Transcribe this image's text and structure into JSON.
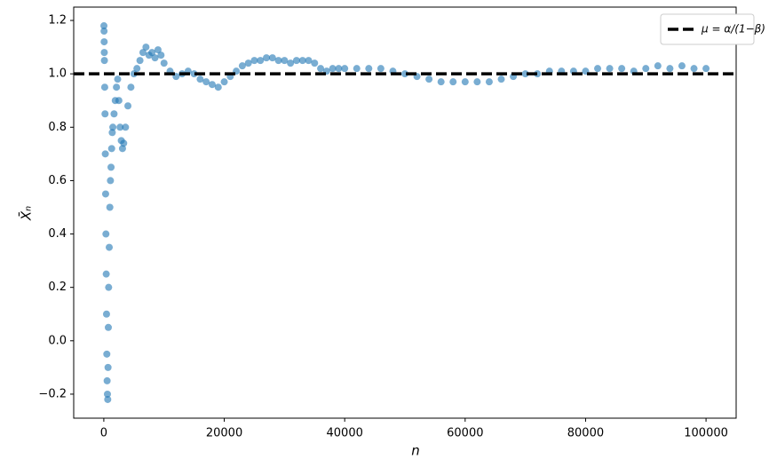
{
  "chart_data": {
    "type": "scatter",
    "xlabel": "n",
    "ylabel": "X̄ₙ",
    "x": [
      20,
      40,
      60,
      80,
      100,
      150,
      200,
      250,
      300,
      350,
      400,
      450,
      500,
      550,
      600,
      650,
      700,
      750,
      800,
      900,
      1000,
      1100,
      1200,
      1300,
      1400,
      1500,
      1700,
      1900,
      2100,
      2300,
      2500,
      2700,
      2900,
      3100,
      3300,
      3600,
      4000,
      4500,
      5000,
      5500,
      6000,
      6500,
      7000,
      7500,
      8000,
      8500,
      9000,
      9500,
      10000,
      11000,
      12000,
      13000,
      14000,
      15000,
      16000,
      17000,
      18000,
      19000,
      20000,
      21000,
      22000,
      23000,
      24000,
      25000,
      26000,
      27000,
      28000,
      29000,
      30000,
      31000,
      32000,
      33000,
      34000,
      35000,
      36000,
      37000,
      38000,
      39000,
      40000,
      42000,
      44000,
      46000,
      48000,
      50000,
      52000,
      54000,
      56000,
      58000,
      60000,
      62000,
      64000,
      66000,
      68000,
      70000,
      72000,
      74000,
      76000,
      78000,
      80000,
      82000,
      84000,
      86000,
      88000,
      90000,
      92000,
      94000,
      96000,
      98000,
      100000
    ],
    "series": [
      {
        "color": "#1f77b4",
        "values": [
          1.18,
          1.16,
          1.12,
          1.08,
          1.05,
          0.95,
          0.85,
          0.7,
          0.55,
          0.4,
          0.25,
          0.1,
          -0.05,
          -0.15,
          -0.2,
          -0.22,
          -0.1,
          0.05,
          0.2,
          0.35,
          0.5,
          0.6,
          0.65,
          0.72,
          0.78,
          0.8,
          0.85,
          0.9,
          0.95,
          0.98,
          0.9,
          0.8,
          0.75,
          0.72,
          0.74,
          0.8,
          0.88,
          0.95,
          1.0,
          1.02,
          1.05,
          1.08,
          1.1,
          1.07,
          1.08,
          1.06,
          1.09,
          1.07,
          1.04,
          1.01,
          0.99,
          1.0,
          1.01,
          1.0,
          0.98,
          0.97,
          0.96,
          0.95,
          0.97,
          0.99,
          1.01,
          1.03,
          1.04,
          1.05,
          1.05,
          1.06,
          1.06,
          1.05,
          1.05,
          1.04,
          1.05,
          1.05,
          1.05,
          1.04,
          1.02,
          1.01,
          1.02,
          1.02,
          1.02,
          1.02,
          1.02,
          1.02,
          1.01,
          1.0,
          0.99,
          0.98,
          0.97,
          0.97,
          0.97,
          0.97,
          0.97,
          0.98,
          0.99,
          1.0,
          1.0,
          1.01,
          1.01,
          1.01,
          1.01,
          1.02,
          1.02,
          1.02,
          1.01,
          1.02,
          1.03,
          1.02,
          1.03,
          1.02,
          1.02
        ]
      }
    ],
    "reference_line": {
      "y": 1,
      "label": "μ = α/(1−β)",
      "color": "#000000"
    },
    "legend": "upper right",
    "xlim": [
      -5000,
      105000
    ],
    "xticks": [
      0,
      20000,
      40000,
      60000,
      80000,
      100000
    ],
    "ylim": [
      -0.29,
      1.25
    ],
    "yticks": [
      {
        "value": -0.2,
        "label": "−0.2"
      },
      {
        "value": 0,
        "label": "0.0"
      },
      0.2,
      0.4,
      0.6,
      0.8,
      {
        "value": 1,
        "label": "1.0"
      },
      1.2
    ]
  }
}
